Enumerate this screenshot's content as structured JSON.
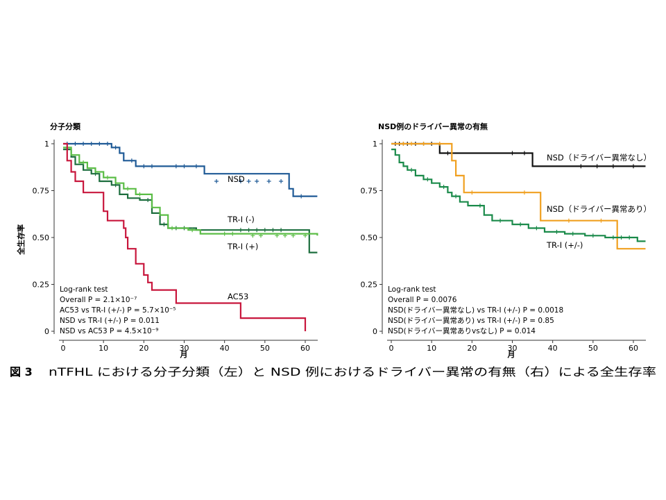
{
  "caption": {
    "fig": "図 3",
    "text": "nTFHL における分子分類（左）と NSD 例におけるドライバー異常の有無（右）による全生存率"
  },
  "chart_data": [
    {
      "type": "line",
      "title": "分子分類",
      "xlabel": "月",
      "ylabel": "全生存率",
      "xlim": [
        0,
        63
      ],
      "ylim": [
        0,
        1
      ],
      "xticks": [
        "0",
        "10",
        "20",
        "30",
        "40",
        "50",
        "60"
      ],
      "yticks": [
        "0",
        "0.25",
        "0.50",
        "0.75",
        "1"
      ],
      "series": [
        {
          "name": "NSD",
          "color": "#1f5a96",
          "steps": [
            [
              0,
              1
            ],
            [
              12,
              0.98
            ],
            [
              14,
              0.95
            ],
            [
              15,
              0.91
            ],
            [
              18,
              0.88
            ],
            [
              35,
              0.84
            ],
            [
              56,
              0.76
            ],
            [
              57,
              0.72
            ],
            [
              63,
              0.72
            ]
          ],
          "censors": [
            [
              1,
              1
            ],
            [
              3,
              1
            ],
            [
              5,
              1
            ],
            [
              7,
              1
            ],
            [
              9,
              1
            ],
            [
              11,
              1
            ],
            [
              13,
              0.98
            ],
            [
              17,
              0.91
            ],
            [
              20,
              0.88
            ],
            [
              22,
              0.88
            ],
            [
              28,
              0.88
            ],
            [
              30,
              0.88
            ],
            [
              33,
              0.88
            ],
            [
              38,
              0.8
            ],
            [
              44,
              0.8
            ],
            [
              46,
              0.8
            ],
            [
              48,
              0.8
            ],
            [
              51,
              0.8
            ],
            [
              54,
              0.8
            ],
            [
              59,
              0.72
            ]
          ]
        },
        {
          "name": "TR-I (-)",
          "color": "#1d6e3e",
          "steps": [
            [
              0,
              0.97
            ],
            [
              2,
              0.93
            ],
            [
              3,
              0.89
            ],
            [
              5,
              0.86
            ],
            [
              7,
              0.84
            ],
            [
              9,
              0.8
            ],
            [
              12,
              0.78
            ],
            [
              14,
              0.73
            ],
            [
              16,
              0.71
            ],
            [
              19,
              0.7
            ],
            [
              22,
              0.63
            ],
            [
              24,
              0.57
            ],
            [
              26,
              0.55
            ],
            [
              33,
              0.54
            ],
            [
              61,
              0.42
            ],
            [
              63,
              0.42
            ]
          ],
          "censors": [
            [
              8,
              0.84
            ],
            [
              13,
              0.78
            ],
            [
              21,
              0.7
            ],
            [
              25,
              0.57
            ],
            [
              28,
              0.55
            ],
            [
              30,
              0.55
            ],
            [
              44,
              0.54
            ],
            [
              46,
              0.54
            ],
            [
              48,
              0.54
            ],
            [
              50,
              0.54
            ],
            [
              52,
              0.54
            ],
            [
              54,
              0.54
            ]
          ]
        },
        {
          "name": "TR-I (+)",
          "color": "#5bbd46",
          "steps": [
            [
              0,
              0.98
            ],
            [
              2,
              0.94
            ],
            [
              4,
              0.9
            ],
            [
              6,
              0.87
            ],
            [
              8,
              0.85
            ],
            [
              10,
              0.82
            ],
            [
              13,
              0.79
            ],
            [
              15,
              0.76
            ],
            [
              18,
              0.73
            ],
            [
              22,
              0.66
            ],
            [
              24,
              0.62
            ],
            [
              26,
              0.55
            ],
            [
              31,
              0.54
            ],
            [
              34,
              0.52
            ],
            [
              63,
              0.51
            ]
          ],
          "censors": [
            [
              5,
              0.9
            ],
            [
              11,
              0.82
            ],
            [
              16,
              0.76
            ],
            [
              19,
              0.73
            ],
            [
              27,
              0.55
            ],
            [
              32,
              0.54
            ],
            [
              40,
              0.52
            ],
            [
              42,
              0.52
            ],
            [
              47,
              0.51
            ],
            [
              49,
              0.51
            ],
            [
              53,
              0.51
            ],
            [
              55,
              0.51
            ],
            [
              57,
              0.51
            ],
            [
              60,
              0.51
            ]
          ]
        },
        {
          "name": "AC53",
          "color": "#c8163c",
          "steps": [
            [
              0,
              1
            ],
            [
              1,
              0.91
            ],
            [
              2,
              0.85
            ],
            [
              3,
              0.8
            ],
            [
              5,
              0.74
            ],
            [
              8,
              0.74
            ],
            [
              10,
              0.64
            ],
            [
              11,
              0.59
            ],
            [
              15,
              0.55
            ],
            [
              15.5,
              0.5
            ],
            [
              16,
              0.44
            ],
            [
              18,
              0.36
            ],
            [
              20,
              0.3
            ],
            [
              21,
              0.26
            ],
            [
              22,
              0.22
            ],
            [
              28,
              0.15
            ],
            [
              44,
              0.07
            ],
            [
              60,
              0.0
            ]
          ],
          "censors": []
        }
      ],
      "stats": [
        "Log-rank test",
        "Overall P = 2.1×10⁻⁷",
        "AC53 vs TR-I (+/-) P = 5.7×10⁻⁵",
        "NSD vs TR-I (+/-) P = 0.011",
        "NSD vs AC53 P = 4.5×10⁻⁹"
      ]
    },
    {
      "type": "line",
      "title": "NSD例のドライバー異常の有無",
      "xlabel": "月",
      "ylabel": "",
      "xlim": [
        0,
        63
      ],
      "ylim": [
        0,
        1
      ],
      "xticks": [
        "0",
        "10",
        "20",
        "30",
        "40",
        "50",
        "60"
      ],
      "yticks": [
        "0",
        "0.25",
        "0.50",
        "0.75",
        "1"
      ],
      "series": [
        {
          "name": "NSD（ドライバー異常なし）",
          "color": "#111111",
          "steps": [
            [
              0,
              1
            ],
            [
              12,
              0.95
            ],
            [
              35,
              0.88
            ],
            [
              63,
              0.88
            ]
          ],
          "censors": [
            [
              1,
              1
            ],
            [
              2,
              1
            ],
            [
              3,
              1
            ],
            [
              4,
              1
            ],
            [
              6,
              1
            ],
            [
              8,
              1
            ],
            [
              10,
              1
            ],
            [
              14,
              0.95
            ],
            [
              30,
              0.95
            ],
            [
              33,
              0.95
            ],
            [
              47,
              0.88
            ],
            [
              51,
              0.88
            ],
            [
              55,
              0.88
            ],
            [
              60,
              0.88
            ]
          ]
        },
        {
          "name": "NSD（ドライバー異常あり）",
          "color": "#f0a020",
          "steps": [
            [
              0,
              1
            ],
            [
              15,
              0.91
            ],
            [
              16,
              0.83
            ],
            [
              18,
              0.74
            ],
            [
              37,
              0.59
            ],
            [
              56,
              0.44
            ],
            [
              63,
              0.44
            ]
          ],
          "censors": [
            [
              3,
              1
            ],
            [
              5,
              1
            ],
            [
              8,
              1
            ],
            [
              12,
              1
            ],
            [
              20,
              0.74
            ],
            [
              33,
              0.74
            ],
            [
              44,
              0.59
            ],
            [
              52,
              0.59
            ]
          ]
        },
        {
          "name": "TR-I (+/-)",
          "color": "#1a8a4a",
          "steps": [
            [
              0,
              0.97
            ],
            [
              1,
              0.94
            ],
            [
              2,
              0.9
            ],
            [
              3,
              0.88
            ],
            [
              4,
              0.86
            ],
            [
              6,
              0.83
            ],
            [
              8,
              0.81
            ],
            [
              10,
              0.79
            ],
            [
              12,
              0.77
            ],
            [
              14,
              0.74
            ],
            [
              15,
              0.72
            ],
            [
              17,
              0.69
            ],
            [
              19,
              0.67
            ],
            [
              23,
              0.62
            ],
            [
              25,
              0.59
            ],
            [
              30,
              0.57
            ],
            [
              34,
              0.55
            ],
            [
              38,
              0.53
            ],
            [
              43,
              0.52
            ],
            [
              48,
              0.51
            ],
            [
              53,
              0.5
            ],
            [
              61,
              0.48
            ],
            [
              63,
              0.48
            ]
          ],
          "censors": [
            [
              5,
              0.86
            ],
            [
              9,
              0.81
            ],
            [
              13,
              0.77
            ],
            [
              16,
              0.72
            ],
            [
              22,
              0.67
            ],
            [
              27,
              0.59
            ],
            [
              32,
              0.57
            ],
            [
              36,
              0.55
            ],
            [
              41,
              0.53
            ],
            [
              45,
              0.52
            ],
            [
              50,
              0.51
            ],
            [
              55,
              0.5
            ],
            [
              57,
              0.5
            ],
            [
              59,
              0.5
            ]
          ]
        }
      ],
      "stats": [
        "Log-rank test",
        "Overall P = 0.0076",
        "NSD(ドライバー異常なし) vs TR-I (+/-) P = 0.0018",
        "NSD(ドライバー異常あり) vs TR-I (+/-) P = 0.85",
        "NSD(ドライバー異常ありvsなし) P = 0.014"
      ]
    }
  ]
}
